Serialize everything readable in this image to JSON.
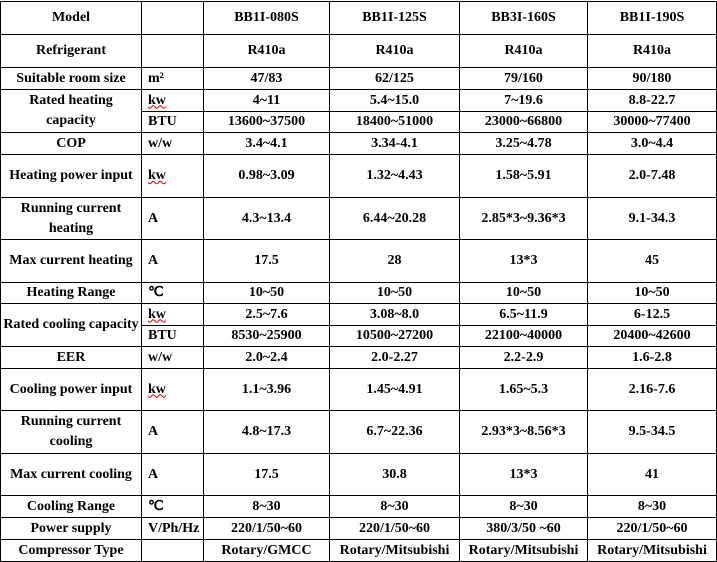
{
  "table": {
    "header": {
      "label": "Model",
      "values": [
        "BB1I-080S",
        "BB1I-125S",
        "BB3I-160S",
        "BB1I-190S"
      ]
    },
    "rows": [
      {
        "label": "Refrigerant",
        "values": [
          "R410a",
          "R410a",
          "R410a",
          "R410a"
        ]
      },
      {
        "label": "Suitable room size",
        "unit": "m²",
        "values": [
          "47/83",
          "62/125",
          "79/160",
          "90/180"
        ]
      },
      {
        "label": "Rated heating capacity",
        "lines": [
          {
            "unit": "kw",
            "values": [
              "4~11",
              "5.4~15.0",
              "7~19.6",
              "8.8-22.7"
            ]
          },
          {
            "unit": "BTU",
            "values": [
              "13600~37500",
              "18400~51000",
              "23000~66800",
              "30000~77400"
            ]
          }
        ]
      },
      {
        "label": "COP",
        "unit": "w/w",
        "values": [
          "3.4~4.1",
          "3.34-4.1",
          "3.25~4.78",
          "3.0~4.4"
        ]
      },
      {
        "label": "Heating power input",
        "unit": "kw",
        "values": [
          "0.98~3.09",
          "1.32~4.43",
          "1.58~5.91",
          "2.0-7.48"
        ]
      },
      {
        "label": "Running current heating",
        "unit": "A",
        "values": [
          "4.3~13.4",
          "6.44~20.28",
          "2.85*3~9.36*3",
          "9.1-34.3"
        ]
      },
      {
        "label": "Max current heating",
        "unit": "A",
        "values": [
          "17.5",
          "28",
          "13*3",
          "45"
        ]
      },
      {
        "label": "Heating Range",
        "unit": "℃",
        "values": [
          "10~50",
          "10~50",
          "10~50",
          "10~50"
        ]
      },
      {
        "label": "Rated cooling capacity",
        "lines": [
          {
            "unit": "kw",
            "values": [
              "2.5~7.6",
              "3.08~8.0",
              "6.5~11.9",
              "6-12.5"
            ]
          },
          {
            "unit": "BTU",
            "values": [
              "8530~25900",
              "10500~27200",
              "22100~40000",
              "20400~42600"
            ]
          }
        ]
      },
      {
        "label": "EER",
        "unit": "w/w",
        "values": [
          "2.0~2.4",
          "2.0-2.27",
          "2.2-2.9",
          "1.6-2.8"
        ]
      },
      {
        "label": "Cooling power input",
        "unit": "kw",
        "values": [
          "1.1~3.96",
          "1.45~4.91",
          "1.65~5.3",
          "2.16-7.6"
        ]
      },
      {
        "label": "Running current cooling",
        "unit": "A",
        "values": [
          "4.8~17.3",
          "6.7~22.36",
          "2.93*3~8.56*3",
          "9.5-34.5"
        ]
      },
      {
        "label": "Max current cooling",
        "unit": "A",
        "values": [
          "17.5",
          "30.8",
          "13*3",
          "41"
        ]
      },
      {
        "label": "Cooling Range",
        "unit": "℃",
        "values": [
          "8~30",
          "8~30",
          "8~30",
          "8~30"
        ]
      },
      {
        "label": "Power supply",
        "unit": "V/Ph/Hz",
        "values": [
          "220/1/50~60",
          "220/1/50~60",
          "380/3/50 ~60",
          "220/1/50~60"
        ]
      },
      {
        "label": "Compressor Type",
        "values": [
          "Rotary/GMCC",
          "Rotary/Mitsubishi",
          "Rotary/Mitsubishi",
          "Rotary/Mitsubishi"
        ]
      }
    ]
  }
}
